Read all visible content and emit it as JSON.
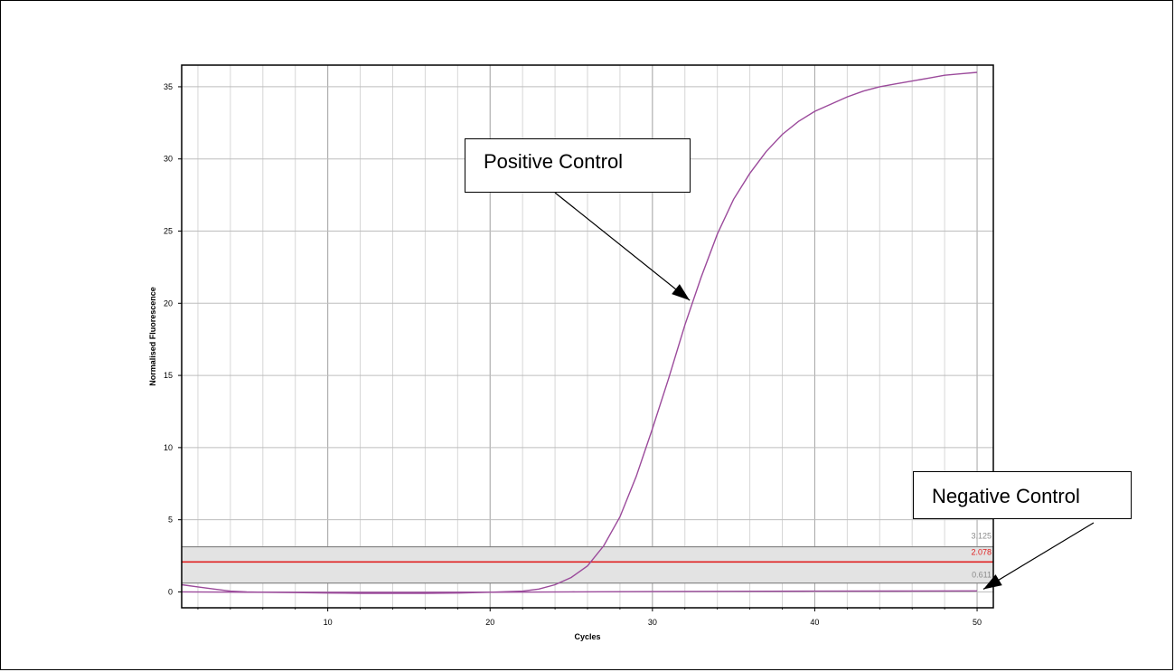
{
  "chart_data": {
    "type": "line",
    "title": "",
    "xlabel": "Cycles",
    "ylabel": "Normalised Fluorescence",
    "xlim": [
      1,
      51
    ],
    "ylim": [
      -1.1,
      36.5
    ],
    "x_ticks": [
      10,
      20,
      30,
      40,
      50
    ],
    "y_ticks": [
      0,
      5,
      10,
      15,
      20,
      25,
      30,
      35
    ],
    "grid": true,
    "series": [
      {
        "name": "Positive Control",
        "color": "#9b4a9b",
        "x": [
          1,
          2,
          3,
          4,
          5,
          6,
          8,
          10,
          12,
          14,
          16,
          18,
          20,
          22,
          23,
          24,
          25,
          26,
          27,
          28,
          29,
          30,
          31,
          32,
          33,
          34,
          35,
          36,
          37,
          38,
          39,
          40,
          41,
          42,
          43,
          44,
          45,
          46,
          47,
          48,
          49,
          50
        ],
        "values": [
          0.5,
          0.35,
          0.2,
          0.05,
          0.0,
          -0.02,
          -0.05,
          -0.08,
          -0.1,
          -0.1,
          -0.1,
          -0.08,
          -0.02,
          0.05,
          0.2,
          0.5,
          1.0,
          1.8,
          3.2,
          5.2,
          8.0,
          11.3,
          14.8,
          18.5,
          21.8,
          24.8,
          27.2,
          29.0,
          30.5,
          31.7,
          32.6,
          33.3,
          33.8,
          34.3,
          34.7,
          35.0,
          35.2,
          35.4,
          35.6,
          35.8,
          35.9,
          36.0
        ]
      },
      {
        "name": "Negative Control",
        "color": "#9b4a9b",
        "x": [
          1,
          5,
          10,
          15,
          20,
          25,
          30,
          35,
          40,
          45,
          50
        ],
        "values": [
          0.0,
          -0.02,
          -0.03,
          -0.03,
          -0.02,
          0.0,
          0.02,
          0.04,
          0.05,
          0.06,
          0.07
        ]
      }
    ],
    "threshold_band": {
      "low": 0.611,
      "high": 3.125,
      "low_label": "0.611",
      "high_label": "3.125",
      "fill": "#e3e3e3",
      "edge_color": "#808080"
    },
    "threshold_line": {
      "value": 2.078,
      "label": "2.078",
      "color": "#e02020"
    },
    "annotations": [
      {
        "text": "Positive Control",
        "target_x": 32.3,
        "target_y": 20.2
      },
      {
        "text": "Negative Control",
        "target_x": 50.2,
        "target_y": 0.0
      }
    ]
  }
}
